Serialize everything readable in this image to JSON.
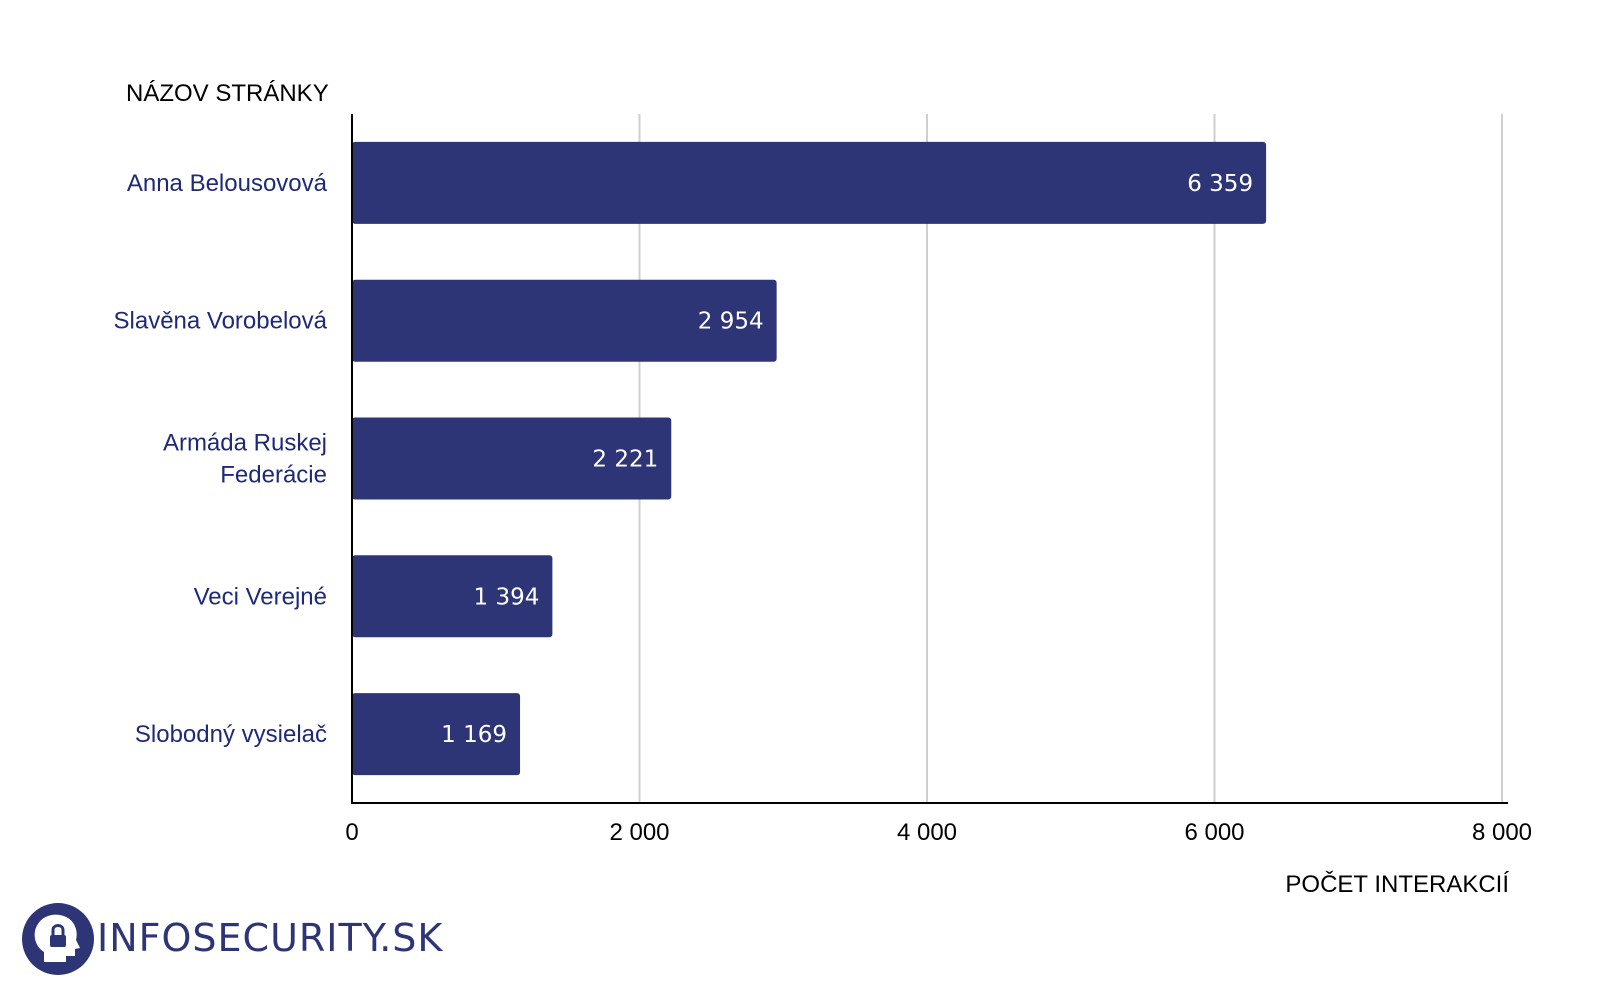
{
  "chart_data": {
    "type": "bar",
    "orientation": "horizontal",
    "categories": [
      [
        "Anna Belousovová"
      ],
      [
        "Slavěna Vorobelová"
      ],
      [
        "Armáda Ruskej",
        "Federácie"
      ],
      [
        "Veci Verejné"
      ],
      [
        "Slobodný vysielač"
      ]
    ],
    "values": [
      6359,
      2954,
      2221,
      1394,
      1169
    ],
    "value_labels": [
      "6 359",
      "2 954",
      "2 221",
      "1 394",
      "1 169"
    ],
    "ylabel": "NÁZOV STRÁNKY",
    "xlabel": "POČET INTERAKCIÍ",
    "xlim": [
      0,
      8000
    ],
    "xticks": [
      0,
      2000,
      4000,
      6000,
      8000
    ],
    "xtick_labels": [
      "0",
      "2 000",
      "4 000",
      "6 000",
      "8 000"
    ],
    "grid": "vertical",
    "colors": {
      "bar": "#2e3577",
      "category_text": "#1e2a78",
      "grid": "#cfcfcf"
    }
  },
  "logo": {
    "text": "INFOSECURITY.SK",
    "color": "#2e3577",
    "icon": "head-lock-icon"
  }
}
